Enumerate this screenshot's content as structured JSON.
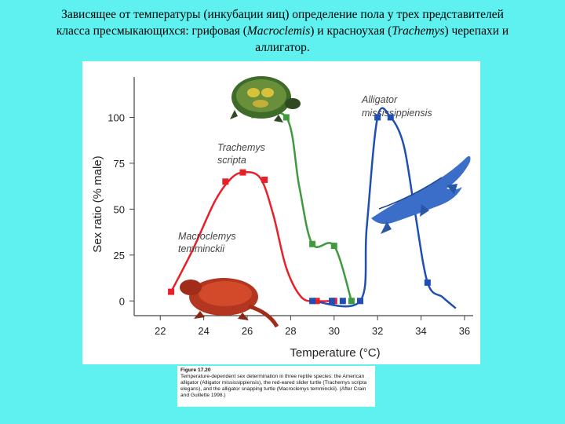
{
  "slide": {
    "title_parts": [
      {
        "text": "Зависящее от температуры (инкубации яиц) определение пола у трех представителей класса  пресмыкающихся: грифовая (",
        "italic": false
      },
      {
        "text": "Macroclemis",
        "italic": true
      },
      {
        "text": ")  и красноухая (",
        "italic": false
      },
      {
        "text": "Trachemys",
        "italic": true
      },
      {
        "text": ")  черепахи и аллигатор.",
        "italic": false
      }
    ]
  },
  "caption": {
    "label": "Figure 17.20",
    "text": "Temperature-dependent sex determination in three reptile species: the American alligator (Alligator mississippiensis), the red-eared slider turtle (Trachemys scripta elegans), and the alligator snapping turtle (Macroclemys temminckii). (After Crain and Guillette 1998.)"
  },
  "chart_data": {
    "type": "line",
    "xlabel": "Temperature (°C)",
    "ylabel": "Sex ratio (% male)",
    "xlim": [
      20.8,
      36.4
    ],
    "ylim": [
      -8,
      122
    ],
    "x_ticks": [
      22,
      24,
      26,
      28,
      30,
      32,
      34,
      36
    ],
    "y_ticks": [
      0,
      25,
      50,
      75,
      100
    ],
    "series": [
      {
        "name": "Macroclemys temminckii",
        "color": "#e8202a",
        "x": [
          22.5,
          25,
          25.8,
          26.8,
          29.2,
          30
        ],
        "y": [
          5,
          65,
          70,
          66,
          0,
          0
        ],
        "curve_x": [
          22.5,
          23.5,
          24.5,
          25.2,
          25.8,
          26.6,
          27.2,
          27.8,
          28.5,
          29.2,
          30
        ],
        "curve_y": [
          5,
          28,
          54,
          66,
          70,
          67,
          47,
          18,
          2,
          0,
          0
        ]
      },
      {
        "name": "Trachemys scripta",
        "color": "#3f9a3f",
        "x": [
          27.8,
          29,
          30,
          30.8
        ],
        "y": [
          100,
          31,
          30,
          0
        ],
        "curve_x": [
          26.2,
          27.8,
          28.4,
          29,
          30,
          30.8
        ],
        "curve_y": [
          100,
          100,
          62,
          31,
          30,
          0
        ]
      },
      {
        "name": "Alligator mississippiensis",
        "color": "#1f4fb5",
        "x": [
          29,
          29.9,
          30.4,
          31.2,
          32,
          32.6,
          34.3
        ],
        "y": [
          0,
          0,
          0,
          0,
          100,
          100,
          10
        ],
        "curve_x": [
          29,
          31.2,
          31.5,
          32,
          32.6,
          33.2,
          33.7,
          34.3,
          35,
          35.6
        ],
        "curve_y": [
          0,
          0,
          40,
          100,
          100,
          85,
          50,
          10,
          2,
          -4
        ]
      }
    ]
  }
}
